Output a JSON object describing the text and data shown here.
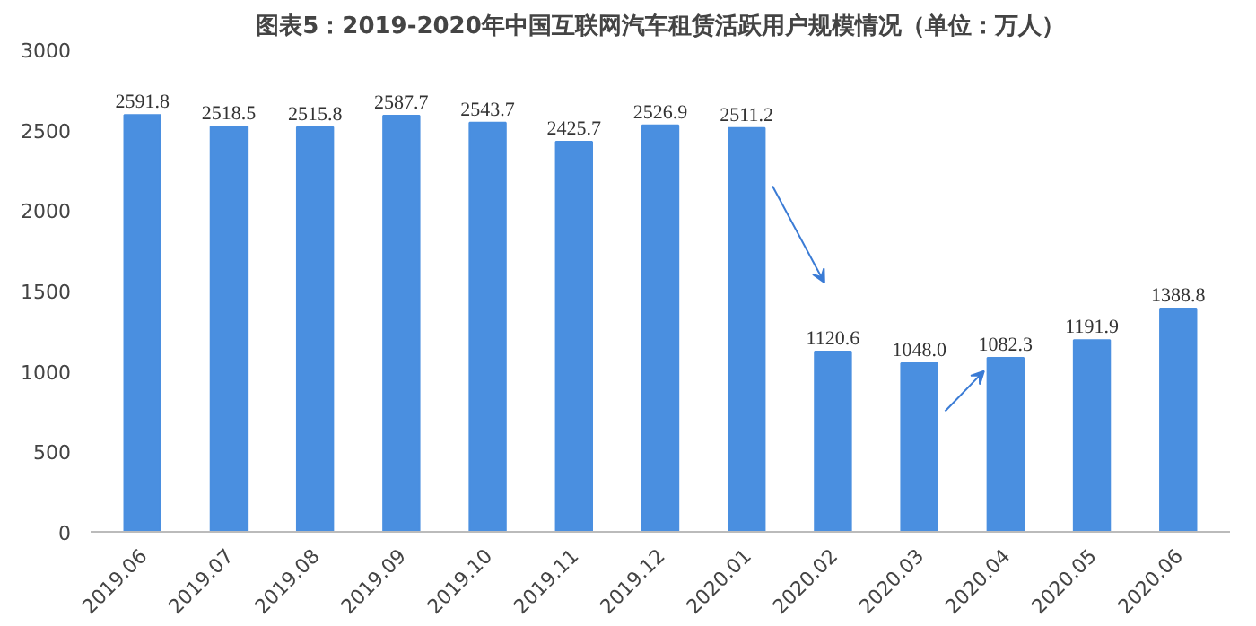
{
  "chart_data": {
    "type": "bar",
    "title": "图表5：2019-2020年中国互联网汽车租赁活跃用户规模情况（单位：万人）",
    "categories": [
      "2019.06",
      "2019.07",
      "2019.08",
      "2019.09",
      "2019.10",
      "2019.11",
      "2019.12",
      "2020.01",
      "2020.02",
      "2020.03",
      "2020.04",
      "2020.05",
      "2020.06"
    ],
    "values": [
      2591.8,
      2518.5,
      2515.8,
      2587.7,
      2543.7,
      2425.7,
      2526.9,
      2511.2,
      1120.6,
      1048.0,
      1082.3,
      1191.9,
      1388.8
    ],
    "value_labels": [
      "2591.8",
      "2518.5",
      "2515.8",
      "2587.7",
      "2543.7",
      "2425.7",
      "2526.9",
      "2511.2",
      "1120.6",
      "1048.0",
      "1082.3",
      "1191.9",
      "1388.8"
    ],
    "color": "#4a8fe0",
    "ylim": [
      0,
      3000
    ],
    "yticks": [
      0,
      500,
      1000,
      1500,
      2000,
      2500,
      3000
    ],
    "grid": false
  }
}
